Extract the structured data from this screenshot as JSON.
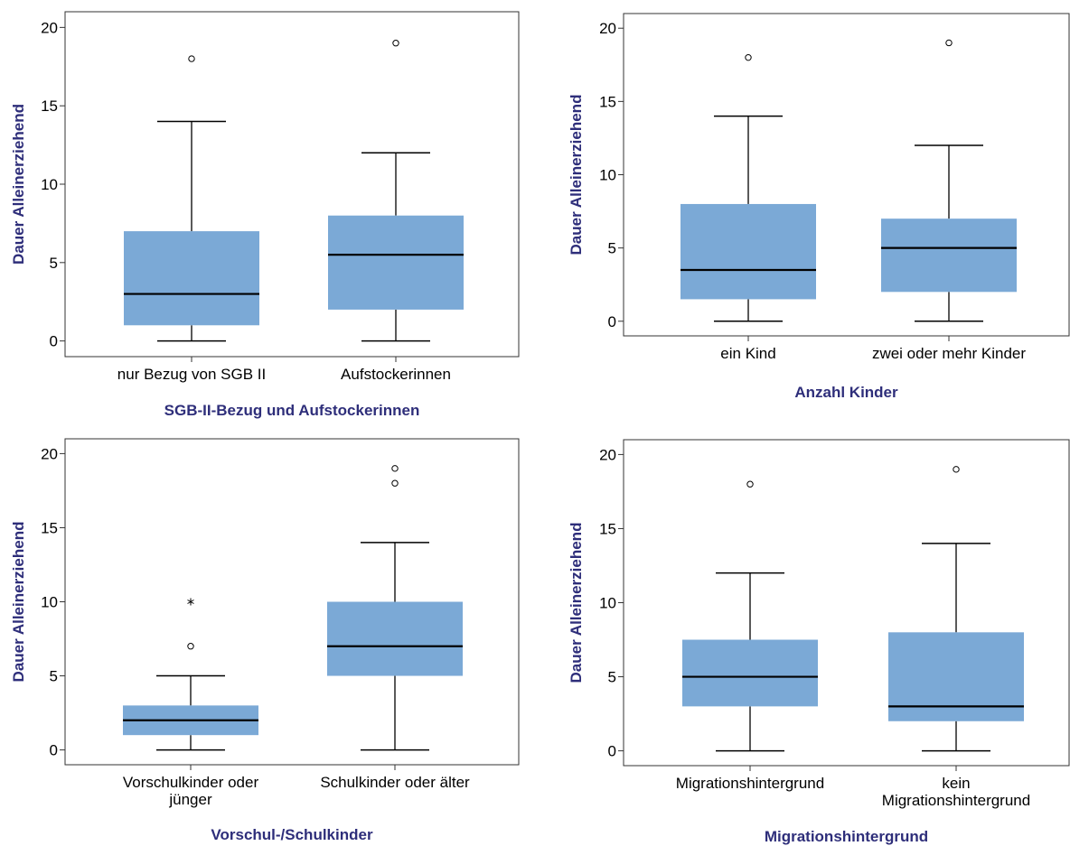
{
  "colors": {
    "box_fill": "#7ba9d6",
    "axis_title": "#2e2e7a",
    "frame": "#333333"
  },
  "chart_data": [
    {
      "type": "boxplot",
      "ylabel": "Dauer Alleinerziehend",
      "xlabel": "SGB-II-Bezug und Aufstockerinnen",
      "ylim": [
        -1,
        21
      ],
      "yticks": [
        0,
        5,
        10,
        15,
        20
      ],
      "categories": [
        {
          "label": [
            "nur Bezug von SGB II"
          ],
          "min": 0,
          "q1": 1,
          "median": 3,
          "q3": 7,
          "max": 14,
          "outliers": [
            18
          ],
          "extremes": []
        },
        {
          "label": [
            "Aufstockerinnen"
          ],
          "min": 0,
          "q1": 2,
          "median": 5.5,
          "q3": 8,
          "max": 12,
          "outliers": [
            19
          ],
          "extremes": []
        }
      ]
    },
    {
      "type": "boxplot",
      "ylabel": "Dauer Alleinerziehend",
      "xlabel": "Anzahl Kinder",
      "ylim": [
        -1,
        21
      ],
      "yticks": [
        0,
        5,
        10,
        15,
        20
      ],
      "categories": [
        {
          "label": [
            "ein Kind"
          ],
          "min": 0,
          "q1": 1.5,
          "median": 3.5,
          "q3": 8,
          "max": 14,
          "outliers": [
            18
          ],
          "extremes": []
        },
        {
          "label": [
            "zwei oder mehr Kinder"
          ],
          "min": 0,
          "q1": 2,
          "median": 5,
          "q3": 7,
          "max": 12,
          "outliers": [
            19
          ],
          "extremes": []
        }
      ]
    },
    {
      "type": "boxplot",
      "ylabel": "Dauer Alleinerziehend",
      "xlabel": "Vorschul-/Schulkinder",
      "ylim": [
        -1,
        21
      ],
      "yticks": [
        0,
        5,
        10,
        15,
        20
      ],
      "categories": [
        {
          "label": [
            "Vorschulkinder oder",
            "jünger"
          ],
          "min": 0,
          "q1": 1,
          "median": 2,
          "q3": 3,
          "max": 5,
          "outliers": [
            7
          ],
          "extremes": [
            10
          ]
        },
        {
          "label": [
            "Schulkinder oder älter"
          ],
          "min": 0,
          "q1": 5,
          "median": 7,
          "q3": 10,
          "max": 14,
          "outliers": [
            18,
            19
          ],
          "extremes": []
        }
      ]
    },
    {
      "type": "boxplot",
      "ylabel": "Dauer Alleinerziehend",
      "xlabel": "Migrationshintergrund",
      "ylim": [
        -1,
        21
      ],
      "yticks": [
        0,
        5,
        10,
        15,
        20
      ],
      "categories": [
        {
          "label": [
            "Migrationshintergrund"
          ],
          "min": 0,
          "q1": 3,
          "median": 5,
          "q3": 7.5,
          "max": 12,
          "outliers": [
            18
          ],
          "extremes": []
        },
        {
          "label": [
            "kein",
            "Migrationshintergrund"
          ],
          "min": 0,
          "q1": 2,
          "median": 3,
          "q3": 8,
          "max": 14,
          "outliers": [
            19
          ],
          "extremes": []
        }
      ]
    }
  ]
}
